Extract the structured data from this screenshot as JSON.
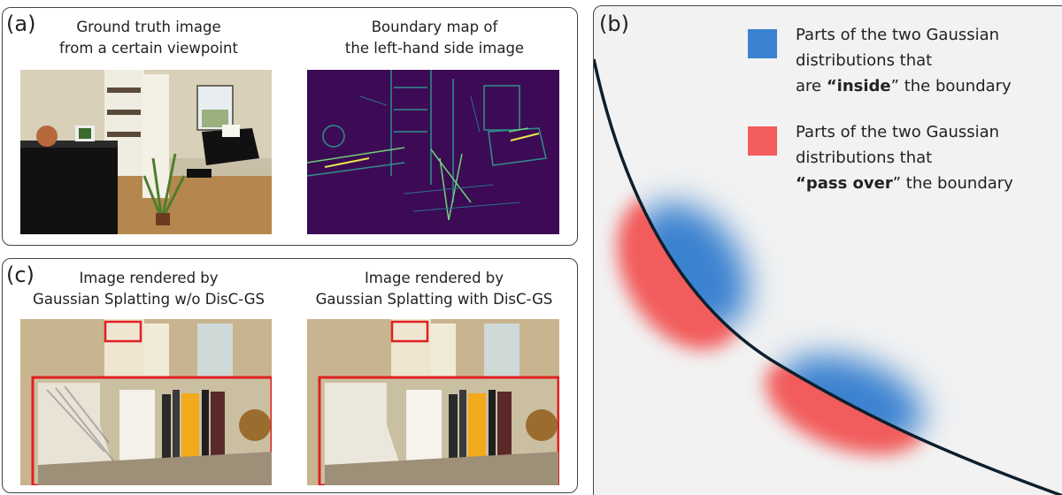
{
  "panel_a": {
    "label": "(a)",
    "left_caption": [
      "Ground truth image",
      "from a certain viewpoint"
    ],
    "right_caption": [
      "Boundary map of",
      "the left-hand side image"
    ]
  },
  "panel_c": {
    "label": "(c)",
    "left_caption": [
      "Image rendered by",
      "Gaussian Splatting w/o DisC-GS"
    ],
    "right_caption": [
      "Image rendered by",
      "Gaussian Splatting with DisC-GS"
    ]
  },
  "panel_b": {
    "label": "(b)",
    "legend": [
      {
        "color": "#3b82d0",
        "lines": [
          {
            "parts": [
              {
                "text": "Parts of the two Gaussian",
                "bold": false
              }
            ]
          },
          {
            "parts": [
              {
                "text": "distributions that",
                "bold": false
              }
            ]
          },
          {
            "parts": [
              {
                "text": "are ",
                "bold": false
              },
              {
                "text": "“inside",
                "bold": true
              },
              {
                "text": "” the boundary",
                "bold": false
              }
            ]
          }
        ]
      },
      {
        "color": "#f25c5c",
        "lines": [
          {
            "parts": [
              {
                "text": "Parts of the two Gaussian",
                "bold": false
              }
            ]
          },
          {
            "parts": [
              {
                "text": "distributions that",
                "bold": false
              }
            ]
          },
          {
            "parts": [
              {
                "text": "“pass over",
                "bold": true
              },
              {
                "text": "” the boundary",
                "bold": false
              }
            ]
          }
        ]
      }
    ]
  },
  "colors": {
    "zoom_box": "#e02020",
    "inside": "#3b82d0",
    "pass_over": "#f25c5c",
    "boundary_curve": "#0e1f2e",
    "boundary_map_bg": "#3d0b55"
  }
}
